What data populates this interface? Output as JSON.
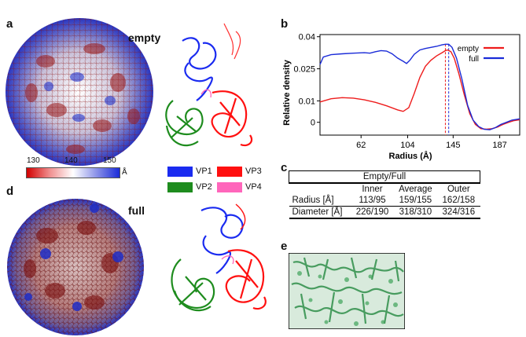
{
  "panels": {
    "a": "a",
    "b": "b",
    "c": "c",
    "d": "d",
    "e": "e"
  },
  "labels": {
    "empty": "empty",
    "full": "full"
  },
  "scale_bar": {
    "ticks": [
      "130",
      "140",
      "150"
    ],
    "unit": "Å",
    "colors": {
      "low": "#d20000",
      "mid": "#ffffff",
      "high": "#1a2bd8"
    }
  },
  "protein_legend": [
    {
      "label": "VP1",
      "color": "#1a2bf0"
    },
    {
      "label": "VP3",
      "color": "#ff1010"
    },
    {
      "label": "VP2",
      "color": "#1e8c1e"
    },
    {
      "label": "VP4",
      "color": "#ff66bb"
    }
  ],
  "chart_data": {
    "type": "line",
    "xlabel": "Radius (Å)",
    "ylabel": "Relative density",
    "x_ticks": [
      62,
      104,
      145,
      187
    ],
    "y_ticks": [
      0,
      0.01,
      0.025,
      0.04
    ],
    "y_tick_labels": [
      "0",
      "0.01",
      "0.025",
      "0.04"
    ],
    "xlim": [
      25,
      205
    ],
    "ylim": [
      -0.006,
      0.041
    ],
    "series": [
      {
        "name": "empty",
        "color": "#ee1c1c",
        "points": [
          [
            25,
            0.0095
          ],
          [
            35,
            0.011
          ],
          [
            45,
            0.0115
          ],
          [
            55,
            0.0113
          ],
          [
            65,
            0.0105
          ],
          [
            75,
            0.0093
          ],
          [
            85,
            0.0077
          ],
          [
            95,
            0.0058
          ],
          [
            100,
            0.0051
          ],
          [
            105,
            0.0068
          ],
          [
            110,
            0.0135
          ],
          [
            115,
            0.021
          ],
          [
            120,
            0.0262
          ],
          [
            125,
            0.029
          ],
          [
            130,
            0.031
          ],
          [
            135,
            0.0325
          ],
          [
            138,
            0.0335
          ],
          [
            140,
            0.0338
          ],
          [
            143,
            0.033
          ],
          [
            146,
            0.03
          ],
          [
            150,
            0.023
          ],
          [
            155,
            0.013
          ],
          [
            160,
            0.004
          ],
          [
            165,
            -0.001
          ],
          [
            170,
            -0.003
          ],
          [
            175,
            -0.0032
          ],
          [
            180,
            -0.003
          ],
          [
            185,
            -0.0022
          ],
          [
            190,
            -0.001
          ],
          [
            195,
            0.0
          ],
          [
            200,
            0.0008
          ],
          [
            205,
            0.0012
          ]
        ]
      },
      {
        "name": "full",
        "color": "#1a2bd8",
        "points": [
          [
            25,
            0.027
          ],
          [
            28,
            0.0305
          ],
          [
            35,
            0.0316
          ],
          [
            45,
            0.032
          ],
          [
            55,
            0.0323
          ],
          [
            65,
            0.0325
          ],
          [
            70,
            0.0323
          ],
          [
            75,
            0.033
          ],
          [
            80,
            0.0335
          ],
          [
            85,
            0.0333
          ],
          [
            90,
            0.032
          ],
          [
            95,
            0.03
          ],
          [
            100,
            0.0285
          ],
          [
            103,
            0.0275
          ],
          [
            106,
            0.029
          ],
          [
            110,
            0.0318
          ],
          [
            115,
            0.0338
          ],
          [
            120,
            0.0345
          ],
          [
            125,
            0.035
          ],
          [
            130,
            0.0355
          ],
          [
            135,
            0.0362
          ],
          [
            138,
            0.0365
          ],
          [
            141,
            0.0365
          ],
          [
            144,
            0.035
          ],
          [
            148,
            0.03
          ],
          [
            153,
            0.02
          ],
          [
            158,
            0.008
          ],
          [
            163,
            0.001
          ],
          [
            168,
            -0.002
          ],
          [
            173,
            -0.0033
          ],
          [
            178,
            -0.0035
          ],
          [
            183,
            -0.0025
          ],
          [
            188,
            -0.001
          ],
          [
            193,
            0.0
          ],
          [
            198,
            0.001
          ],
          [
            205,
            0.0016
          ]
        ]
      }
    ],
    "vlines": [
      {
        "x": 138,
        "color": "#ee1c1c"
      },
      {
        "x": 141,
        "color": "#1a2bd8"
      }
    ],
    "legend_position": "top-right"
  },
  "table": {
    "caption": "Empty/Full",
    "headers": [
      "",
      "Inner",
      "Average",
      "Outer"
    ],
    "rows": [
      [
        "Radius [Å]",
        "113/95",
        "159/155",
        "162/158"
      ],
      [
        "Diameter [Å]",
        "226/190",
        "318/310",
        "324/316"
      ]
    ]
  }
}
